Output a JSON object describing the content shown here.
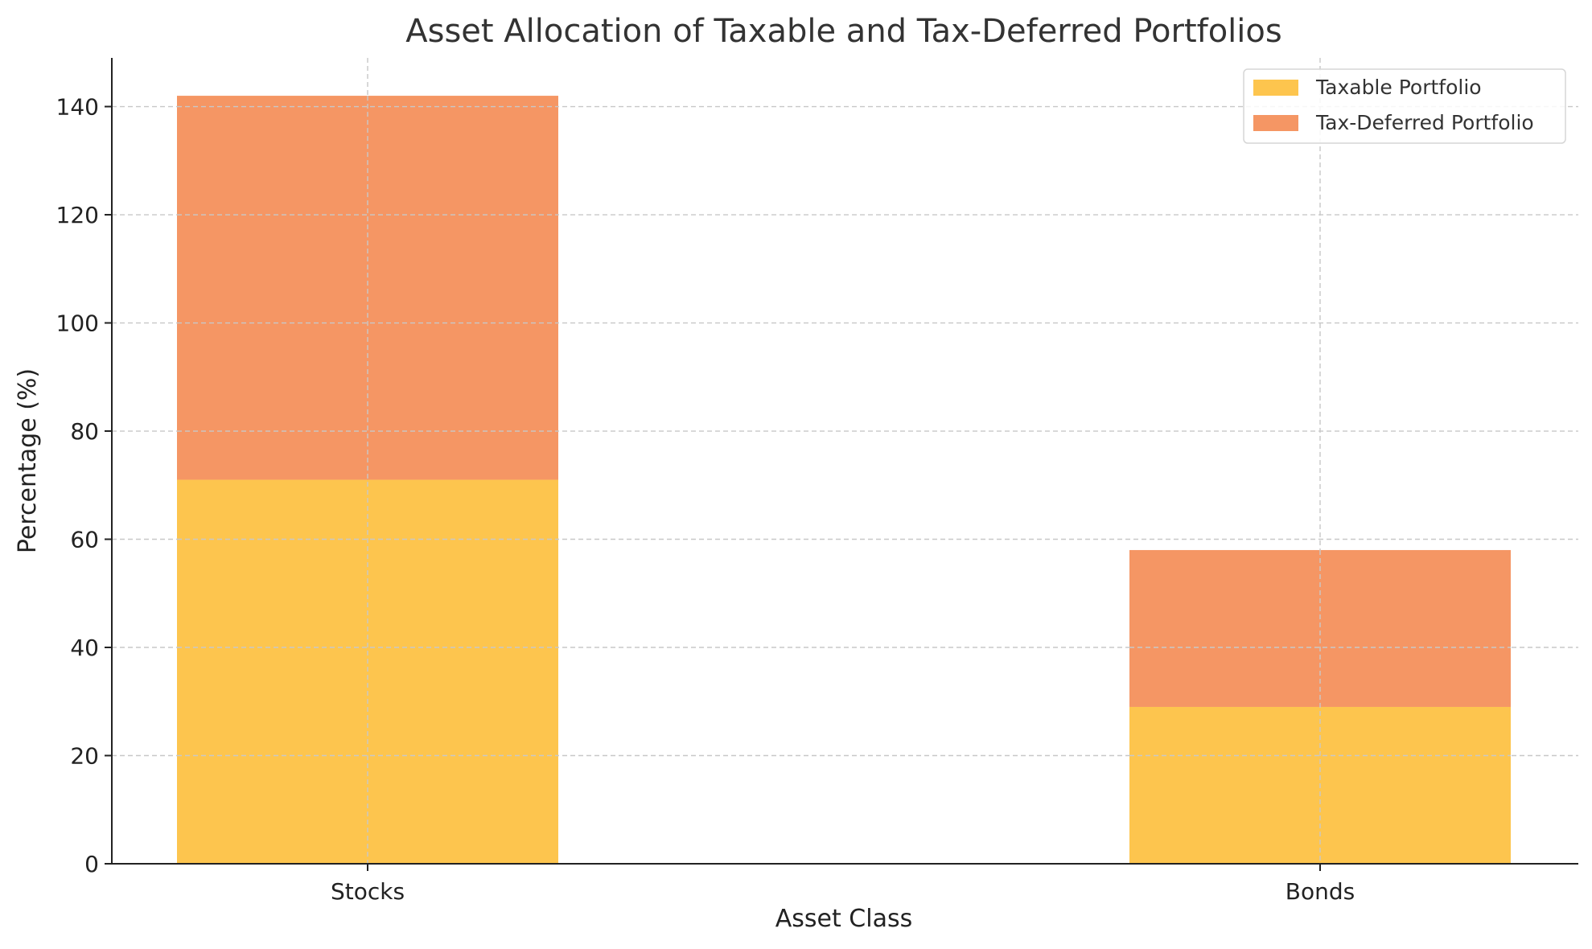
{
  "chart_data": {
    "type": "bar",
    "stacked": true,
    "title": "Asset Allocation of Taxable and Tax-Deferred Portfolios",
    "xlabel": "Asset Class",
    "ylabel": "Percentage (%)",
    "categories": [
      "Stocks",
      "Bonds"
    ],
    "series": [
      {
        "name": "Taxable Portfolio",
        "values": [
          71,
          29
        ],
        "color": "#FDC54E"
      },
      {
        "name": "Tax-Deferred Portfolio",
        "values": [
          71,
          29
        ],
        "color": "#F59664"
      }
    ],
    "ylim": [
      0,
      149
    ],
    "yticks": [
      0,
      20,
      40,
      60,
      80,
      100,
      120,
      140
    ],
    "grid": true,
    "legend_position": "top-right"
  }
}
